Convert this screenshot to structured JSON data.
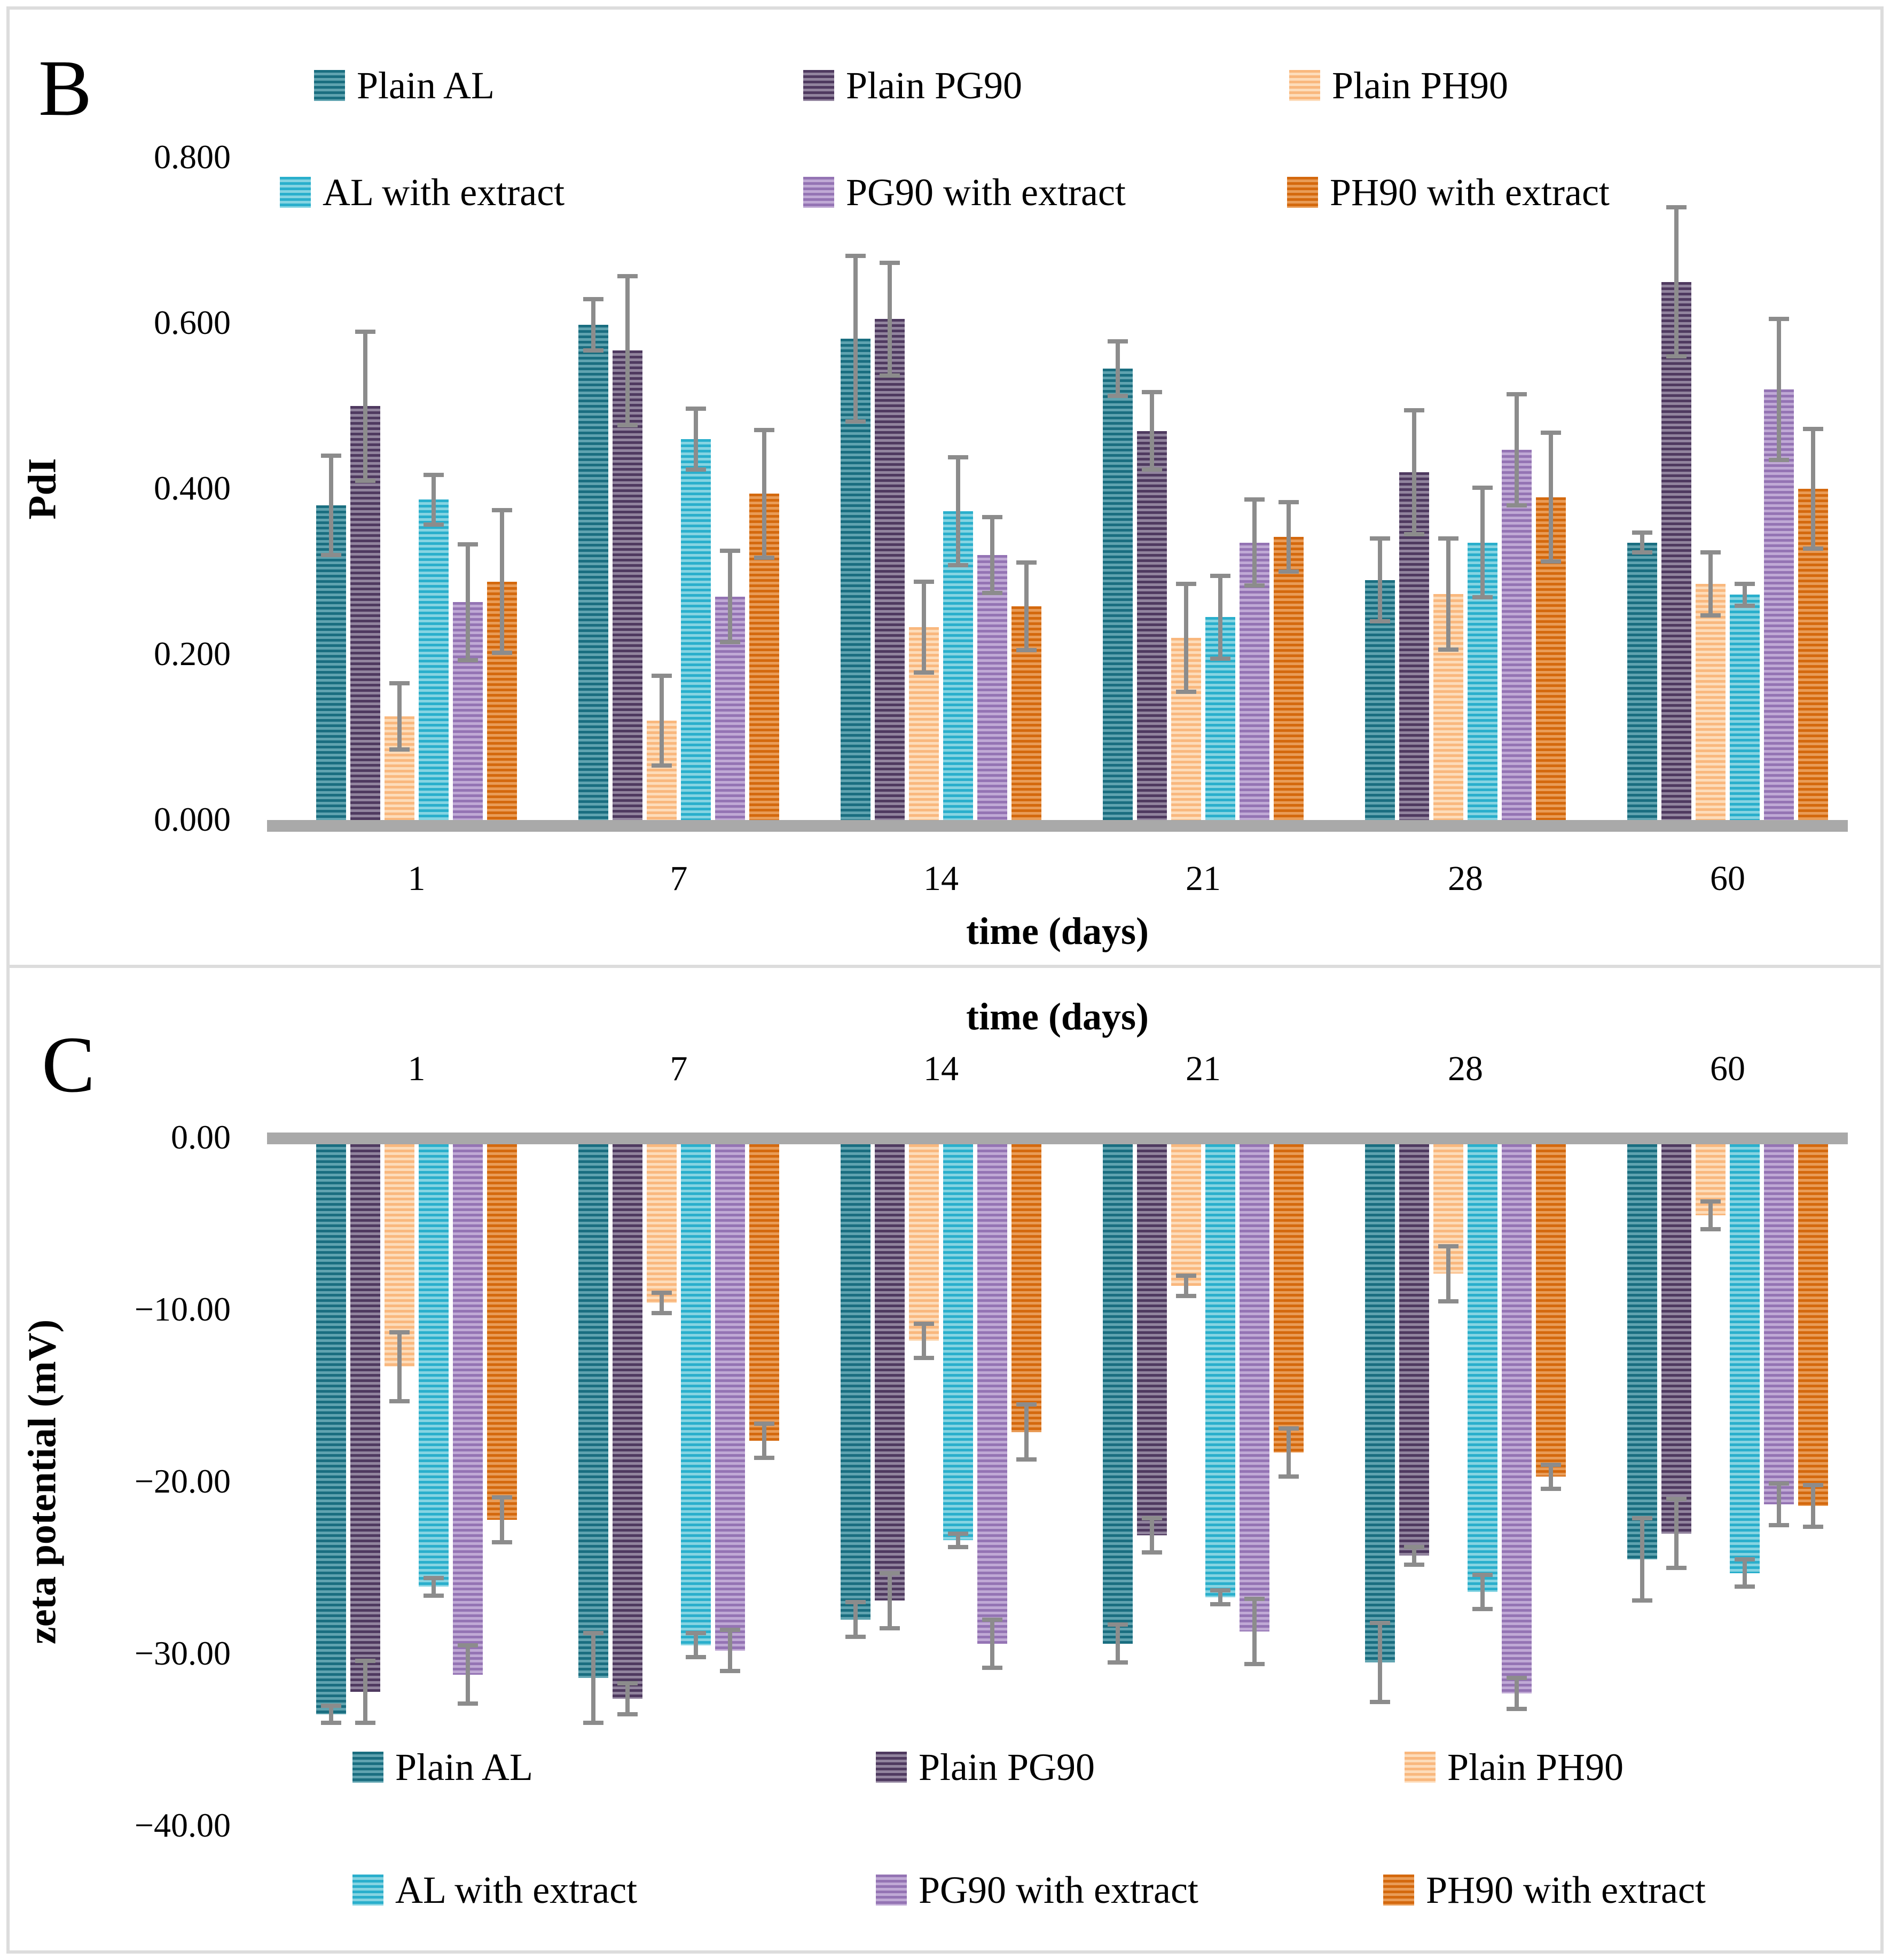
{
  "figure": {
    "panel_b_letter": "B",
    "panel_c_letter": "C",
    "series_names": [
      "Plain AL",
      "Plain PG90",
      "Plain PH90",
      "AL with extract",
      "PG90 with extract",
      "PH90 with extract"
    ]
  },
  "colors": {
    "series": [
      {
        "name": "Plain AL",
        "dark": "#1a6e80",
        "light": "#60a3b0"
      },
      {
        "name": "Plain PG90",
        "dark": "#4f3a60",
        "light": "#92849e"
      },
      {
        "name": "Plain PH90",
        "dark": "#f9b87e",
        "light": "#fddcba"
      },
      {
        "name": "AL with extract",
        "dark": "#2aafcc",
        "light": "#86d4e2"
      },
      {
        "name": "PG90 with extract",
        "dark": "#9474b4",
        "light": "#c0a9d5"
      },
      {
        "name": "PH90 with extract",
        "dark": "#d4690e",
        "light": "#e99c57"
      }
    ],
    "axis_line": "#a9a9a9",
    "error_bar": "#8c8c8c",
    "frame_border": "#dcdcdc",
    "text": "#000000"
  },
  "chart_data": [
    {
      "panel": "B",
      "panel_label": "B",
      "type": "bar",
      "title": "",
      "xlabel": "time (days)",
      "ylabel": "PdI",
      "categories": [
        "1",
        "7",
        "14",
        "21",
        "28",
        "60"
      ],
      "ylim": [
        0,
        0.8
      ],
      "ytick_values": [
        0.8,
        0.6,
        0.4,
        0.2,
        0
      ],
      "ytick_labels": [
        "0.800",
        "0.600",
        "0.400",
        "0.200",
        "0.000"
      ],
      "grid": false,
      "legend_position": "top, two rows inside plot",
      "error_bars": true,
      "series": [
        {
          "name": "Plain AL",
          "values": [
            0.38,
            0.598,
            0.581,
            0.545,
            0.29,
            0.335
          ],
          "errors": [
            0.06,
            0.031,
            0.1,
            0.033,
            0.05,
            0.012
          ]
        },
        {
          "name": "Plain PG90",
          "values": [
            0.5,
            0.567,
            0.605,
            0.47,
            0.42,
            0.65
          ],
          "errors": [
            0.09,
            0.09,
            0.068,
            0.047,
            0.075,
            0.09
          ]
        },
        {
          "name": "Plain PH90",
          "values": [
            0.125,
            0.12,
            0.233,
            0.22,
            0.273,
            0.285
          ],
          "errors": [
            0.04,
            0.054,
            0.055,
            0.065,
            0.067,
            0.038
          ]
        },
        {
          "name": "AL with extract",
          "values": [
            0.387,
            0.46,
            0.373,
            0.245,
            0.335,
            0.272
          ],
          "errors": [
            0.03,
            0.037,
            0.065,
            0.05,
            0.066,
            0.013
          ]
        },
        {
          "name": "PG90 with extract",
          "values": [
            0.263,
            0.27,
            0.32,
            0.335,
            0.447,
            0.52
          ],
          "errors": [
            0.07,
            0.055,
            0.046,
            0.052,
            0.067,
            0.085
          ]
        },
        {
          "name": "PH90 with extract",
          "values": [
            0.288,
            0.394,
            0.258,
            0.342,
            0.39,
            0.4
          ],
          "errors": [
            0.086,
            0.077,
            0.053,
            0.042,
            0.078,
            0.072
          ]
        }
      ]
    },
    {
      "panel": "C",
      "panel_label": "C",
      "type": "bar",
      "title": "",
      "xlabel": "time (days)",
      "ylabel": "zeta potential (mV)",
      "categories": [
        "1",
        "7",
        "14",
        "21",
        "28",
        "60"
      ],
      "ylim": [
        -40,
        0
      ],
      "ytick_values": [
        0,
        -10,
        -20,
        -30,
        -40
      ],
      "ytick_labels": [
        "0.00",
        "−10.00",
        "−20.00",
        "−30.00",
        "−40.00"
      ],
      "grid": false,
      "legend_position": "bottom, two rows inside plot",
      "error_bars": true,
      "x_axis_position": "top",
      "series": [
        {
          "name": "Plain AL",
          "values": [
            -33.5,
            -31.4,
            -28.0,
            -29.4,
            -30.5,
            -24.5
          ],
          "errors": [
            0.5,
            2.6,
            1.0,
            1.1,
            2.3,
            2.4
          ]
        },
        {
          "name": "Plain PG90",
          "values": [
            -32.2,
            -32.6,
            -26.9,
            -23.1,
            -24.3,
            -23.0
          ],
          "errors": [
            1.8,
            0.9,
            1.6,
            1.0,
            0.5,
            2.0
          ]
        },
        {
          "name": "Plain PH90",
          "values": [
            -13.3,
            -9.6,
            -11.8,
            -8.6,
            -7.9,
            -4.5
          ],
          "errors": [
            2.0,
            0.6,
            1.0,
            0.6,
            1.6,
            0.8
          ]
        },
        {
          "name": "AL with extract",
          "values": [
            -26.1,
            -29.5,
            -23.4,
            -26.7,
            -26.4,
            -25.3
          ],
          "errors": [
            0.5,
            0.7,
            0.4,
            0.4,
            1.0,
            0.8
          ]
        },
        {
          "name": "PG90 with extract",
          "values": [
            -31.2,
            -29.8,
            -29.4,
            -28.7,
            -32.3,
            -21.3
          ],
          "errors": [
            1.7,
            1.2,
            1.4,
            1.9,
            0.9,
            1.2
          ]
        },
        {
          "name": "PH90 with extract",
          "values": [
            -22.2,
            -17.6,
            -17.1,
            -18.3,
            -19.7,
            -21.4
          ],
          "errors": [
            1.3,
            1.0,
            1.6,
            1.4,
            0.7,
            1.2
          ]
        }
      ]
    }
  ]
}
